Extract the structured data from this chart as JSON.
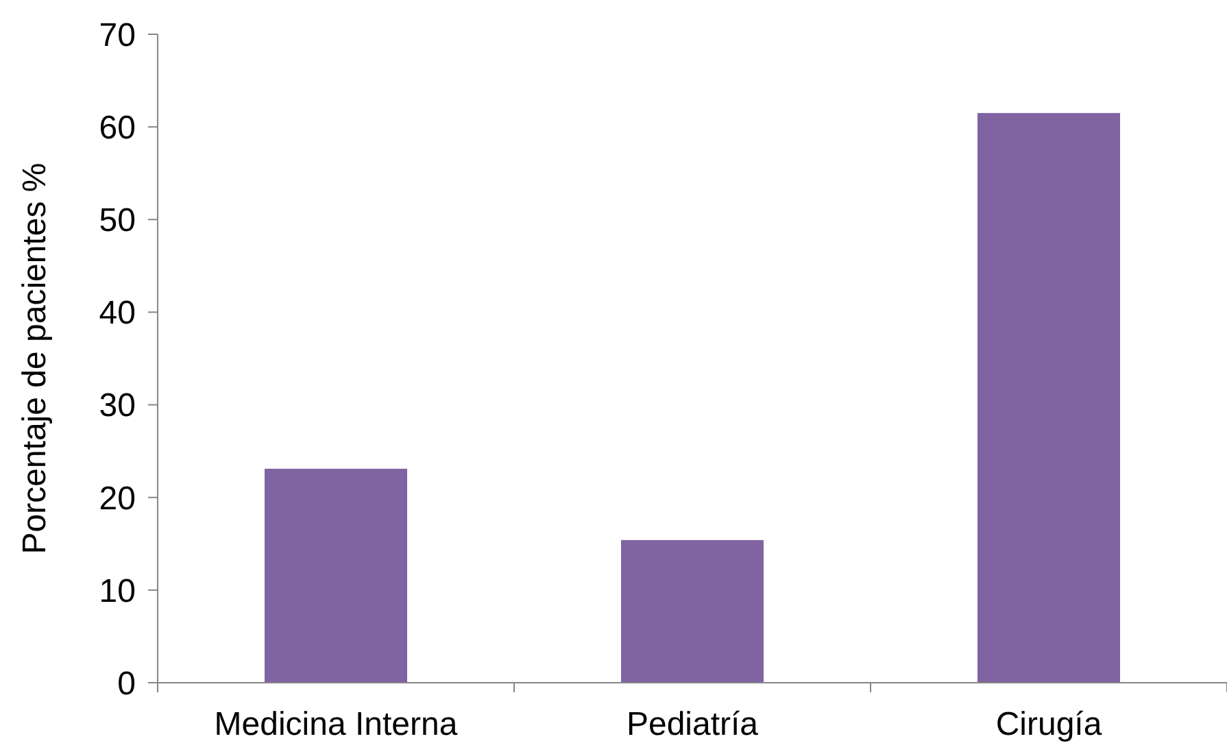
{
  "chart_data": {
    "type": "bar",
    "ylabel": "Porcentaje de pacientes %",
    "categories": [
      "Medicina Interna",
      "Pediatría",
      "Cirugía"
    ],
    "values": [
      23.1,
      15.4,
      61.5
    ],
    "color": "#8064a2",
    "ylim": [
      0,
      70
    ],
    "yticks": [
      0,
      10,
      20,
      30,
      40,
      50,
      60,
      70
    ],
    "grid": false
  }
}
